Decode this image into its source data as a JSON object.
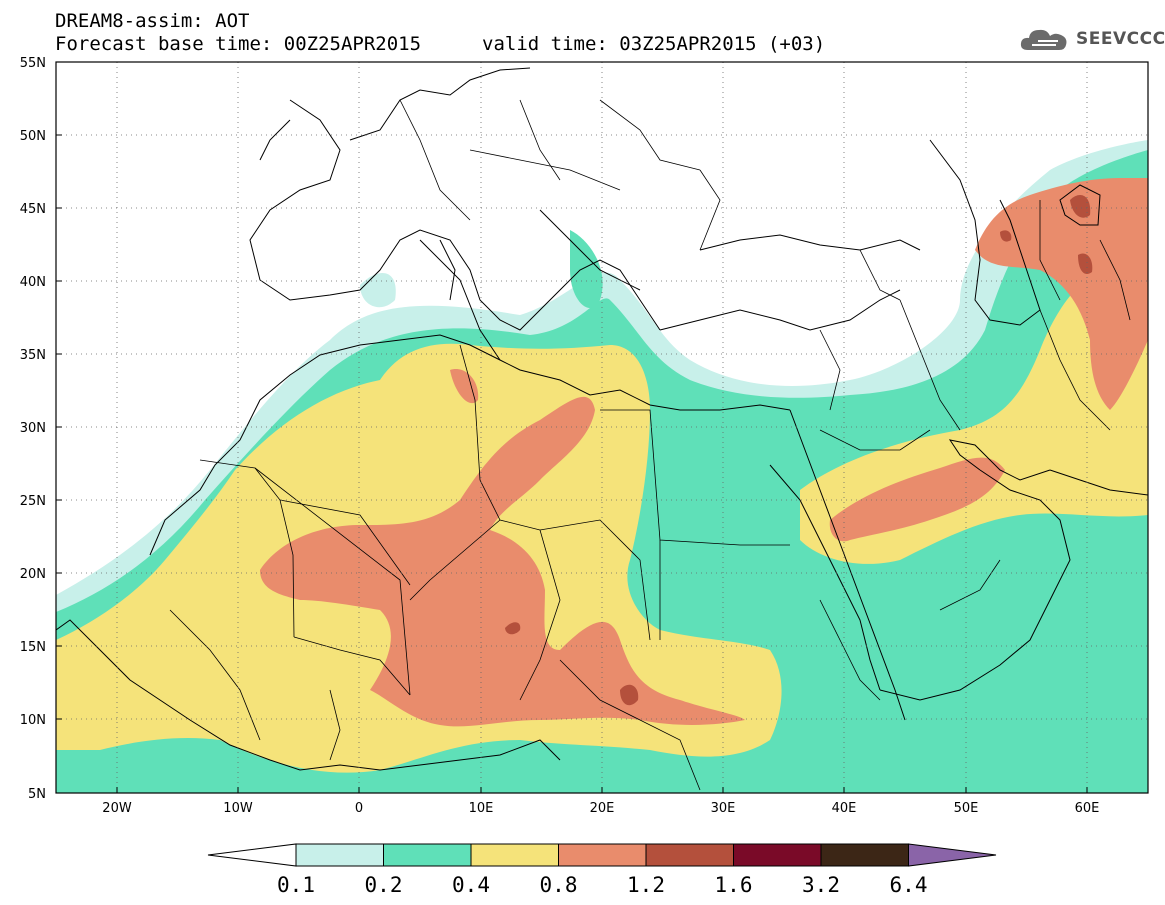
{
  "header": {
    "title": "DREAM8-assim: AOT",
    "base_time": "Forecast base time: 00Z25APR2015",
    "valid_time": "valid time: 03Z25APR2015 (+03)"
  },
  "logo": {
    "text": "SEEVCCC",
    "icon": "cloud-icon"
  },
  "map": {
    "lon_range": [
      -25,
      65
    ],
    "lat_range": [
      5,
      55
    ],
    "lat_labels": [
      "55N",
      "50N",
      "45N",
      "40N",
      "35N",
      "30N",
      "25N",
      "20N",
      "15N",
      "10N",
      "5N"
    ],
    "lon_labels": [
      "20W",
      "10W",
      "0",
      "10E",
      "20E",
      "30E",
      "40E",
      "50E",
      "60E"
    ],
    "grid": "dotted"
  },
  "colorbar": {
    "labels": [
      "0.1",
      "0.2",
      "0.4",
      "0.8",
      "1.2",
      "1.6",
      "3.2",
      "6.4"
    ],
    "colors": [
      "#ffffff",
      "#c8f0ea",
      "#5fe0b8",
      "#f5e37a",
      "#e98c6c",
      "#b4503c",
      "#7a0a28",
      "#3c2616",
      "#8a64a8"
    ]
  },
  "legend_colors": {
    "c01": "#c8f0ea",
    "c02": "#5fe0b8",
    "c04": "#f5e37a",
    "c08": "#e98c6c",
    "c12": "#b4503c",
    "c16": "#7a0a28"
  }
}
